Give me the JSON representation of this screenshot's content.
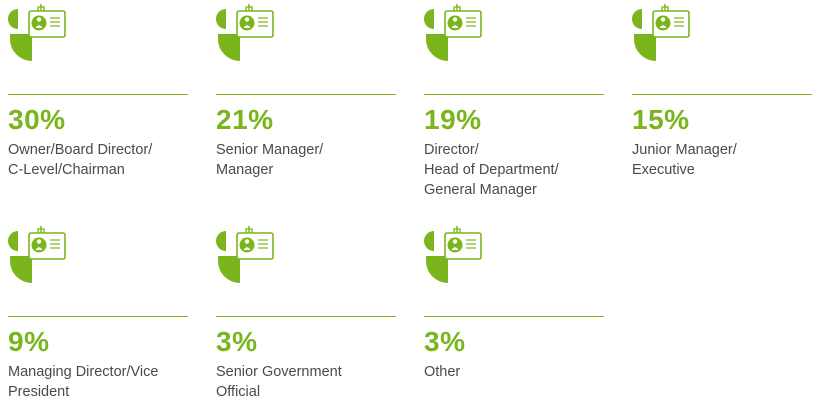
{
  "colors": {
    "accent": "#7ab51d",
    "text": "#4a4a4a"
  },
  "icon": "person-with-id-badge-icon",
  "items": [
    {
      "percent": "30%",
      "lines": [
        "Owner/Board Director/",
        "C-Level/Chairman"
      ]
    },
    {
      "percent": "21%",
      "lines": [
        "Senior Manager/",
        "Manager"
      ]
    },
    {
      "percent": "19%",
      "lines": [
        "Director/",
        "Head of Department/",
        "General Manager"
      ]
    },
    {
      "percent": "15%",
      "lines": [
        "Junior Manager/",
        "Executive"
      ]
    },
    {
      "percent": "9%",
      "lines": [
        "Managing Director/Vice",
        "President"
      ]
    },
    {
      "percent": "3%",
      "lines": [
        "Senior Government",
        "Official"
      ]
    },
    {
      "percent": "3%",
      "lines": [
        "Other"
      ]
    }
  ]
}
